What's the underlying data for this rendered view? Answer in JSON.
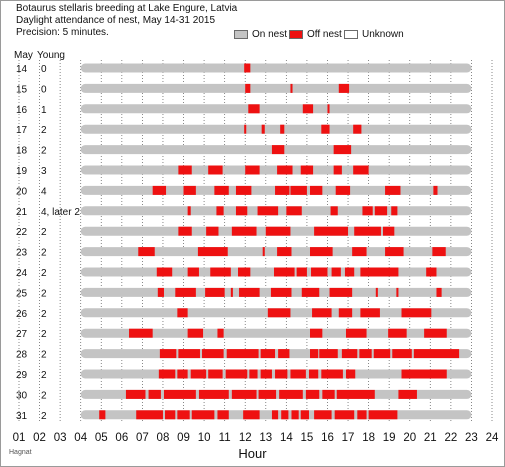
{
  "header": {
    "title_line_1": "Botaurus stellaris breeding at Lake Engure, Latvia",
    "title_line_2": "Daylight attendance of nest, May 14-31 2015",
    "title_line_3": "Precision: 5 minutes."
  },
  "legend": {
    "on_nest": "On nest",
    "off_nest": "Off nest",
    "unknown": "Unknown"
  },
  "colors": {
    "on_nest": "#c4c4c4",
    "off_nest": "#ee1111",
    "unknown": "#ffffff"
  },
  "columns": {
    "day": "May",
    "young": "Young"
  },
  "watermark": "Hagnat",
  "chart_data": {
    "type": "bar",
    "orientation": "horizontal",
    "xlabel": "Hour",
    "xlim": [
      1,
      24
    ],
    "x_ticks": [
      "01",
      "02",
      "03",
      "04",
      "05",
      "06",
      "07",
      "08",
      "09",
      "10",
      "11",
      "12",
      "13",
      "14",
      "15",
      "16",
      "17",
      "18",
      "19",
      "20",
      "21",
      "22",
      "23",
      "24"
    ],
    "grid": "vertical dotted lines at each hour",
    "legend_placement": "top",
    "rows": [
      {
        "day": "14",
        "young": "0",
        "on_nest": [
          4.0,
          23.0
        ],
        "off_nest": [
          [
            11.95,
            12.25
          ]
        ]
      },
      {
        "day": "15",
        "young": "0",
        "on_nest": [
          4.0,
          23.0
        ],
        "off_nest": [
          [
            12.0,
            12.25
          ],
          [
            14.2,
            14.3
          ],
          [
            16.55,
            17.05
          ]
        ]
      },
      {
        "day": "16",
        "young": "1",
        "on_nest": [
          4.0,
          23.0
        ],
        "off_nest": [
          [
            12.15,
            12.7
          ],
          [
            14.8,
            15.3
          ],
          [
            16.0,
            16.1
          ]
        ]
      },
      {
        "day": "17",
        "young": "2",
        "on_nest": [
          4.0,
          23.0
        ],
        "off_nest": [
          [
            11.95,
            12.05
          ],
          [
            12.8,
            12.95
          ],
          [
            13.7,
            13.9
          ],
          [
            15.7,
            16.1
          ],
          [
            17.25,
            17.65
          ]
        ]
      },
      {
        "day": "18",
        "young": "2",
        "on_nest": [
          4.0,
          23.0
        ],
        "off_nest": [
          [
            13.3,
            13.9
          ],
          [
            16.3,
            17.15
          ]
        ]
      },
      {
        "day": "19",
        "young": "3",
        "on_nest": [
          4.0,
          23.0
        ],
        "off_nest": [
          [
            8.75,
            9.4
          ],
          [
            10.2,
            10.9
          ],
          [
            12.0,
            12.7
          ],
          [
            13.55,
            14.3
          ],
          [
            14.7,
            15.3
          ],
          [
            16.3,
            16.7
          ],
          [
            17.25,
            18.0
          ]
        ]
      },
      {
        "day": "20",
        "young": "4",
        "on_nest": [
          4.0,
          23.0
        ],
        "off_nest": [
          [
            7.5,
            8.15
          ],
          [
            9.0,
            9.6
          ],
          [
            10.5,
            11.2
          ],
          [
            11.55,
            12.3
          ],
          [
            13.45,
            14.15
          ],
          [
            14.2,
            15.0
          ],
          [
            15.15,
            15.75
          ],
          [
            16.4,
            17.1
          ],
          [
            18.8,
            19.55
          ],
          [
            21.15,
            21.35
          ]
        ]
      },
      {
        "day": "21",
        "young": "4, later 2",
        "on_nest": [
          4.0,
          23.0
        ],
        "off_nest": [
          [
            9.2,
            9.35
          ],
          [
            10.6,
            10.95
          ],
          [
            11.55,
            12.1
          ],
          [
            12.6,
            13.6
          ],
          [
            14.0,
            14.75
          ],
          [
            16.15,
            16.5
          ],
          [
            17.7,
            18.2
          ],
          [
            18.3,
            18.9
          ],
          [
            19.1,
            19.4
          ]
        ]
      },
      {
        "day": "22",
        "young": "2",
        "on_nest": [
          4.0,
          23.0
        ],
        "off_nest": [
          [
            8.75,
            9.4
          ],
          [
            10.1,
            10.7
          ],
          [
            11.35,
            12.55
          ],
          [
            13.0,
            14.2
          ],
          [
            15.35,
            17.0
          ],
          [
            17.3,
            18.6
          ],
          [
            18.7,
            19.25
          ]
        ]
      },
      {
        "day": "23",
        "young": "2",
        "on_nest": [
          4.0,
          23.0
        ],
        "off_nest": [
          [
            6.8,
            7.6
          ],
          [
            9.7,
            11.15
          ],
          [
            12.85,
            12.95
          ],
          [
            13.55,
            14.25
          ],
          [
            15.15,
            16.25
          ],
          [
            17.2,
            17.9
          ],
          [
            18.8,
            19.7
          ],
          [
            21.1,
            21.75
          ]
        ]
      },
      {
        "day": "24",
        "young": "2",
        "on_nest": [
          4.0,
          23.0
        ],
        "off_nest": [
          [
            7.7,
            8.45
          ],
          [
            9.2,
            9.75
          ],
          [
            10.3,
            11.3
          ],
          [
            11.65,
            12.25
          ],
          [
            13.4,
            14.4
          ],
          [
            14.5,
            15.0
          ],
          [
            15.2,
            16.0
          ],
          [
            16.2,
            16.65
          ],
          [
            16.85,
            17.3
          ],
          [
            17.6,
            19.45
          ],
          [
            20.8,
            21.3
          ]
        ]
      },
      {
        "day": "25",
        "young": "2",
        "on_nest": [
          4.0,
          23.0
        ],
        "off_nest": [
          [
            7.75,
            8.05
          ],
          [
            8.6,
            9.6
          ],
          [
            10.05,
            11.0
          ],
          [
            11.3,
            11.4
          ],
          [
            11.7,
            12.7
          ],
          [
            13.25,
            14.25
          ],
          [
            14.75,
            15.6
          ],
          [
            16.1,
            17.2
          ],
          [
            18.35,
            18.45
          ],
          [
            19.35,
            19.45
          ],
          [
            21.3,
            21.55
          ]
        ]
      },
      {
        "day": "26",
        "young": "2",
        "on_nest": [
          4.0,
          23.0
        ],
        "off_nest": [
          [
            8.7,
            9.2
          ],
          [
            13.1,
            14.2
          ],
          [
            15.25,
            16.2
          ],
          [
            16.55,
            17.2
          ],
          [
            17.6,
            18.55
          ],
          [
            19.6,
            21.05
          ]
        ]
      },
      {
        "day": "27",
        "young": "2",
        "on_nest": [
          4.0,
          23.0
        ],
        "off_nest": [
          [
            6.35,
            7.5
          ],
          [
            9.2,
            9.95
          ],
          [
            10.65,
            10.95
          ],
          [
            15.15,
            15.75
          ],
          [
            16.9,
            17.9
          ],
          [
            18.95,
            19.85
          ],
          [
            20.7,
            21.8
          ]
        ]
      },
      {
        "day": "28",
        "young": "2",
        "on_nest": [
          4.0,
          23.0
        ],
        "off_nest": [
          [
            7.85,
            8.65
          ],
          [
            8.75,
            9.8
          ],
          [
            9.9,
            10.95
          ],
          [
            11.1,
            12.65
          ],
          [
            12.75,
            13.45
          ],
          [
            13.6,
            14.15
          ],
          [
            15.15,
            15.55
          ],
          [
            15.6,
            16.5
          ],
          [
            16.7,
            17.45
          ],
          [
            17.55,
            18.15
          ],
          [
            18.25,
            19.05
          ],
          [
            19.15,
            20.1
          ],
          [
            20.2,
            22.4
          ]
        ]
      },
      {
        "day": "29",
        "young": "2",
        "on_nest": [
          4.0,
          23.0
        ],
        "off_nest": [
          [
            7.8,
            8.6
          ],
          [
            8.7,
            9.2
          ],
          [
            9.35,
            10.1
          ],
          [
            10.2,
            10.9
          ],
          [
            11.05,
            12.1
          ],
          [
            12.2,
            12.6
          ],
          [
            12.75,
            13.3
          ],
          [
            13.45,
            14.05
          ],
          [
            14.2,
            14.95
          ],
          [
            15.1,
            15.55
          ],
          [
            15.7,
            16.75
          ],
          [
            16.9,
            17.35
          ],
          [
            19.6,
            21.8
          ]
        ]
      },
      {
        "day": "30",
        "young": "2",
        "on_nest": [
          4.0,
          23.0
        ],
        "off_nest": [
          [
            6.2,
            7.15
          ],
          [
            7.3,
            7.9
          ],
          [
            8.05,
            9.6
          ],
          [
            9.75,
            11.2
          ],
          [
            11.35,
            12.55
          ],
          [
            12.65,
            13.5
          ],
          [
            13.65,
            14.8
          ],
          [
            14.95,
            15.6
          ],
          [
            15.75,
            16.35
          ],
          [
            16.45,
            18.3
          ],
          [
            19.45,
            20.35
          ]
        ]
      },
      {
        "day": "31",
        "young": "2",
        "on_nest": [
          4.0,
          23.0
        ],
        "off_nest": [
          [
            4.9,
            5.2
          ],
          [
            6.7,
            8.0
          ],
          [
            8.1,
            8.6
          ],
          [
            8.7,
            9.3
          ],
          [
            9.4,
            10.5
          ],
          [
            10.65,
            11.2
          ],
          [
            11.9,
            12.7
          ],
          [
            13.3,
            13.6
          ],
          [
            13.75,
            14.1
          ],
          [
            14.25,
            14.6
          ],
          [
            14.7,
            15.1
          ],
          [
            15.35,
            16.2
          ],
          [
            16.35,
            17.3
          ],
          [
            17.45,
            17.9
          ],
          [
            18.0,
            19.4
          ]
        ]
      }
    ]
  }
}
